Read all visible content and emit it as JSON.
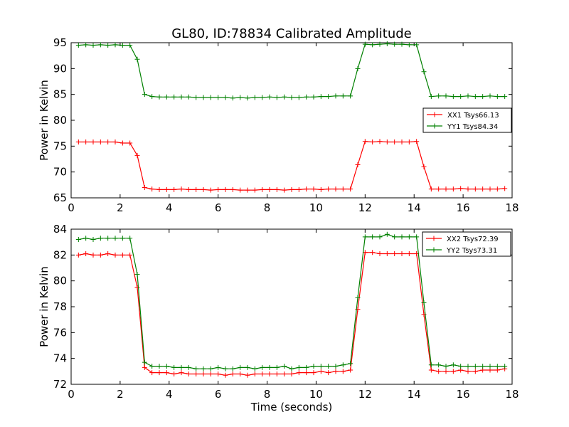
{
  "figure": {
    "title": "GL80, ID:78834 Calibrated Amplitude"
  },
  "chart_data": [
    {
      "type": "line",
      "title": "GL80, ID:78834 Calibrated Amplitude",
      "xlabel": "",
      "ylabel": "Power in Kelvin",
      "xlim": [
        0,
        18
      ],
      "ylim": [
        65,
        95
      ],
      "xticks": [
        0,
        2,
        4,
        6,
        8,
        10,
        12,
        14,
        16,
        18
      ],
      "yticks": [
        65,
        70,
        75,
        80,
        85,
        90,
        95
      ],
      "legend_position": "center-right",
      "grid": false,
      "x": [
        0.3,
        0.6,
        0.9,
        1.2,
        1.5,
        1.8,
        2.1,
        2.4,
        2.7,
        3.0,
        3.3,
        3.6,
        3.9,
        4.2,
        4.5,
        4.8,
        5.1,
        5.4,
        5.7,
        6.0,
        6.3,
        6.6,
        6.9,
        7.2,
        7.5,
        7.8,
        8.1,
        8.4,
        8.7,
        9.0,
        9.3,
        9.6,
        9.9,
        10.2,
        10.5,
        10.8,
        11.1,
        11.4,
        11.7,
        12.0,
        12.3,
        12.6,
        12.9,
        13.2,
        13.5,
        13.8,
        14.1,
        14.4,
        14.7,
        15.0,
        15.3,
        15.6,
        15.9,
        16.2,
        16.5,
        16.8,
        17.1,
        17.4,
        17.7
      ],
      "series": [
        {
          "name": "XX1 Tsys66.13",
          "color": "#ff0000",
          "values": [
            75.8,
            75.8,
            75.8,
            75.8,
            75.8,
            75.8,
            75.6,
            75.6,
            73.2,
            67.0,
            66.7,
            66.6,
            66.6,
            66.6,
            66.7,
            66.6,
            66.6,
            66.6,
            66.5,
            66.6,
            66.6,
            66.6,
            66.5,
            66.5,
            66.5,
            66.6,
            66.6,
            66.6,
            66.5,
            66.6,
            66.6,
            66.7,
            66.7,
            66.6,
            66.7,
            66.7,
            66.7,
            66.7,
            71.4,
            75.9,
            75.8,
            75.9,
            75.8,
            75.8,
            75.8,
            75.8,
            75.9,
            71.0,
            66.7,
            66.7,
            66.7,
            66.7,
            66.8,
            66.7,
            66.7,
            66.7,
            66.7,
            66.7,
            66.8
          ]
        },
        {
          "name": "YY1 Tsys84.34",
          "color": "#008000",
          "values": [
            94.5,
            94.6,
            94.5,
            94.6,
            94.5,
            94.6,
            94.5,
            94.5,
            91.8,
            85.0,
            84.6,
            84.5,
            84.5,
            84.5,
            84.5,
            84.5,
            84.4,
            84.4,
            84.4,
            84.4,
            84.4,
            84.3,
            84.4,
            84.3,
            84.4,
            84.4,
            84.5,
            84.4,
            84.5,
            84.4,
            84.4,
            84.5,
            84.5,
            84.6,
            84.6,
            84.7,
            84.7,
            84.7,
            90.0,
            94.7,
            94.6,
            94.7,
            94.8,
            94.7,
            94.7,
            94.6,
            94.6,
            89.4,
            84.6,
            84.7,
            84.7,
            84.6,
            84.6,
            84.7,
            84.6,
            84.6,
            84.7,
            84.6,
            84.6
          ]
        }
      ]
    },
    {
      "type": "line",
      "title": "",
      "xlabel": "Time (seconds)",
      "ylabel": "Power in Kelvin",
      "xlim": [
        0,
        18
      ],
      "ylim": [
        72,
        84
      ],
      "xticks": [
        0,
        2,
        4,
        6,
        8,
        10,
        12,
        14,
        16,
        18
      ],
      "yticks": [
        72,
        74,
        76,
        78,
        80,
        82,
        84
      ],
      "legend_position": "top-right",
      "grid": false,
      "x": [
        0.3,
        0.6,
        0.9,
        1.2,
        1.5,
        1.8,
        2.1,
        2.4,
        2.7,
        3.0,
        3.3,
        3.6,
        3.9,
        4.2,
        4.5,
        4.8,
        5.1,
        5.4,
        5.7,
        6.0,
        6.3,
        6.6,
        6.9,
        7.2,
        7.5,
        7.8,
        8.1,
        8.4,
        8.7,
        9.0,
        9.3,
        9.6,
        9.9,
        10.2,
        10.5,
        10.8,
        11.1,
        11.4,
        11.7,
        12.0,
        12.3,
        12.6,
        12.9,
        13.2,
        13.5,
        13.8,
        14.1,
        14.4,
        14.7,
        15.0,
        15.3,
        15.6,
        15.9,
        16.2,
        16.5,
        16.8,
        17.1,
        17.4,
        17.7
      ],
      "series": [
        {
          "name": "XX2 Tsys72.39",
          "color": "#ff0000",
          "values": [
            82.0,
            82.1,
            82.0,
            82.0,
            82.1,
            82.0,
            82.0,
            82.0,
            79.5,
            73.3,
            72.9,
            72.9,
            72.9,
            72.8,
            72.9,
            72.8,
            72.8,
            72.8,
            72.8,
            72.8,
            72.7,
            72.8,
            72.8,
            72.7,
            72.8,
            72.8,
            72.8,
            72.8,
            72.8,
            72.8,
            72.9,
            72.9,
            72.9,
            73.0,
            72.9,
            73.0,
            73.0,
            73.1,
            77.8,
            82.2,
            82.2,
            82.1,
            82.1,
            82.1,
            82.1,
            82.1,
            82.1,
            77.4,
            73.1,
            73.0,
            73.0,
            73.0,
            73.1,
            73.0,
            73.0,
            73.1,
            73.1,
            73.1,
            73.2
          ]
        },
        {
          "name": "YY2 Tsys73.31",
          "color": "#008000",
          "values": [
            83.2,
            83.3,
            83.2,
            83.3,
            83.3,
            83.3,
            83.3,
            83.3,
            80.5,
            73.7,
            73.4,
            73.4,
            73.4,
            73.3,
            73.3,
            73.3,
            73.2,
            73.2,
            73.2,
            73.3,
            73.2,
            73.2,
            73.3,
            73.3,
            73.2,
            73.3,
            73.3,
            73.3,
            73.4,
            73.2,
            73.3,
            73.3,
            73.4,
            73.4,
            73.4,
            73.4,
            73.5,
            73.6,
            78.7,
            83.4,
            83.4,
            83.4,
            83.6,
            83.4,
            83.4,
            83.4,
            83.4,
            78.3,
            73.5,
            73.5,
            73.4,
            73.5,
            73.4,
            73.4,
            73.4,
            73.4,
            73.4,
            73.4,
            73.4
          ]
        }
      ]
    }
  ]
}
